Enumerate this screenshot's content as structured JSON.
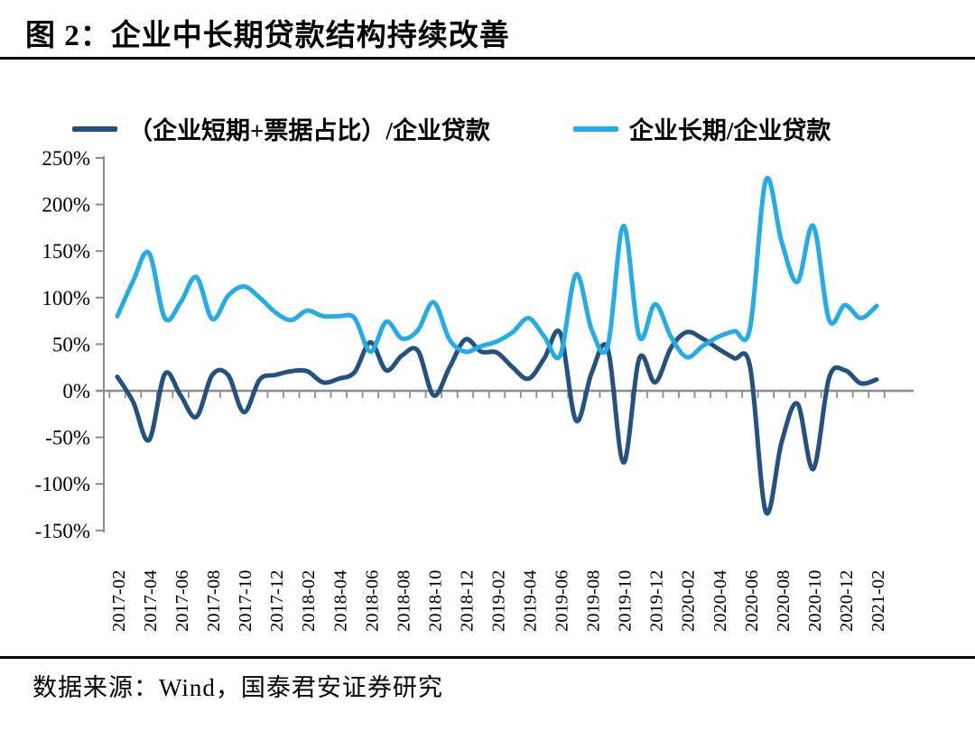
{
  "header": {
    "title": "图 2：企业中长期贷款结构持续改善"
  },
  "footer": {
    "source": "数据来源：Wind，国泰君安证券研究"
  },
  "chart_data": {
    "type": "line",
    "line_style": "smooth",
    "legend_position": "top",
    "grid": "zero-line-only",
    "axis_color": "#8C8C8C",
    "ylim": [
      -150,
      250
    ],
    "y_unit": "%",
    "y_ticks": [
      {
        "label": "250%",
        "value": 250
      },
      {
        "label": "200%",
        "value": 200
      },
      {
        "label": "150%",
        "value": 150
      },
      {
        "label": "100%",
        "value": 100
      },
      {
        "label": "50%",
        "value": 50
      },
      {
        "label": "0%",
        "value": 0
      },
      {
        "label": "-50%",
        "value": -50
      },
      {
        "label": "-100%",
        "value": -100
      },
      {
        "label": "-150%",
        "value": -150
      }
    ],
    "x_tick_labels": [
      "2017-02",
      "2017-04",
      "2017-06",
      "2017-08",
      "2017-10",
      "2017-12",
      "2018-02",
      "2018-04",
      "2018-06",
      "2018-08",
      "2018-10",
      "2018-12",
      "2019-02",
      "2019-04",
      "2019-06",
      "2019-08",
      "2019-10",
      "2019-12",
      "2020-02",
      "2020-04",
      "2020-06",
      "2020-08",
      "2020-10",
      "2020-12",
      "2021-02"
    ],
    "x": [
      "2017-02",
      "2017-03",
      "2017-04",
      "2017-05",
      "2017-06",
      "2017-07",
      "2017-08",
      "2017-09",
      "2017-10",
      "2017-11",
      "2017-12",
      "2018-01",
      "2018-02",
      "2018-03",
      "2018-04",
      "2018-05",
      "2018-06",
      "2018-07",
      "2018-08",
      "2018-09",
      "2018-10",
      "2018-11",
      "2018-12",
      "2019-01",
      "2019-02",
      "2019-03",
      "2019-04",
      "2019-05",
      "2019-06",
      "2019-07",
      "2019-08",
      "2019-09",
      "2019-10",
      "2019-11",
      "2019-12",
      "2020-01",
      "2020-02",
      "2020-03",
      "2020-04",
      "2020-05",
      "2020-06",
      "2020-07",
      "2020-08",
      "2020-09",
      "2020-10",
      "2020-11",
      "2020-12",
      "2021-01",
      "2021-02"
    ],
    "series": [
      {
        "name": "（企业短期+票据占比）/企业贷款",
        "color": "#24517F",
        "values": [
          15,
          -12,
          -53,
          18,
          -5,
          -28,
          17,
          17,
          -23,
          12,
          17,
          21,
          21,
          9,
          13,
          20,
          52,
          22,
          38,
          43,
          -5,
          25,
          55,
          42,
          41,
          25,
          13,
          35,
          62,
          -32,
          20,
          45,
          -77,
          35,
          9,
          46,
          63,
          56,
          45,
          35,
          26,
          -130,
          -55,
          -14,
          -84,
          14,
          22,
          8,
          12
        ]
      },
      {
        "name": "企业长期/企业贷款",
        "color": "#23ACE8",
        "values": [
          80,
          118,
          148,
          78,
          95,
          122,
          77,
          102,
          112,
          100,
          84,
          76,
          86,
          80,
          80,
          78,
          42,
          74,
          56,
          65,
          95,
          55,
          42,
          48,
          53,
          63,
          78,
          58,
          38,
          125,
          65,
          48,
          177,
          58,
          93,
          58,
          36,
          48,
          58,
          64,
          67,
          226,
          160,
          117,
          177,
          76,
          92,
          78,
          91
        ]
      }
    ]
  }
}
